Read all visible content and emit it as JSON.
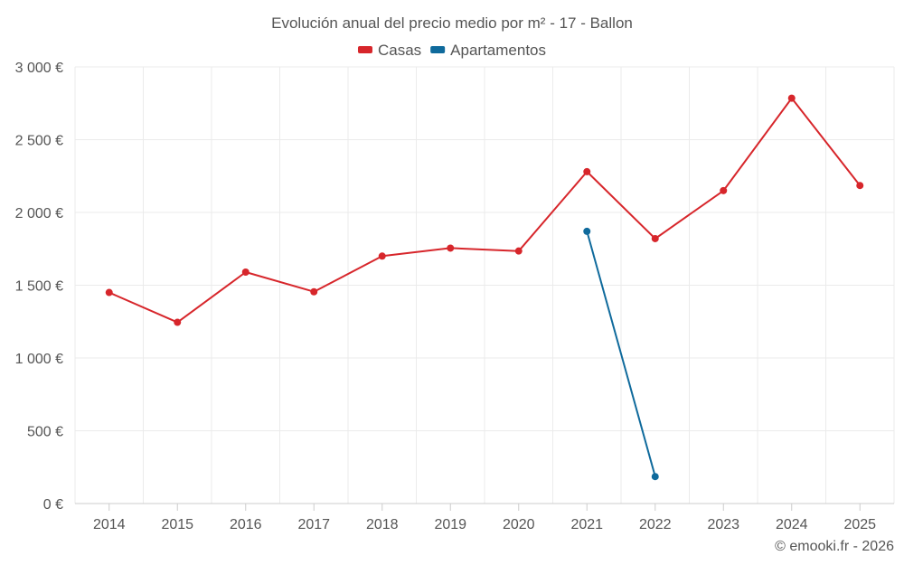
{
  "chart_data": {
    "type": "line",
    "title": "Evolución anual del precio medio por m² - 17 - Ballon",
    "xlabel": "",
    "ylabel": "",
    "categories": [
      "2014",
      "2015",
      "2016",
      "2017",
      "2018",
      "2019",
      "2020",
      "2021",
      "2022",
      "2023",
      "2024",
      "2025"
    ],
    "ylim": [
      0,
      3000
    ],
    "yticks": [
      {
        "value": 0,
        "label": "0 €"
      },
      {
        "value": 500,
        "label": "500 €"
      },
      {
        "value": 1000,
        "label": "1 000 €"
      },
      {
        "value": 1500,
        "label": "1 500 €"
      },
      {
        "value": 2000,
        "label": "2 000 €"
      },
      {
        "value": 2500,
        "label": "2 500 €"
      },
      {
        "value": 3000,
        "label": "3 000 €"
      }
    ],
    "grid": true,
    "legend_position": "top-center",
    "series": [
      {
        "name": "Casas",
        "color": "#d7262b",
        "values": [
          1450,
          1245,
          1590,
          1455,
          1700,
          1755,
          1735,
          2280,
          1820,
          2150,
          2785,
          2185
        ]
      },
      {
        "name": "Apartamentos",
        "color": "#0f6a9c",
        "values": [
          null,
          null,
          null,
          null,
          null,
          null,
          null,
          1870,
          185,
          null,
          null,
          null
        ]
      }
    ],
    "credit": "© emooki.fr - 2026"
  }
}
